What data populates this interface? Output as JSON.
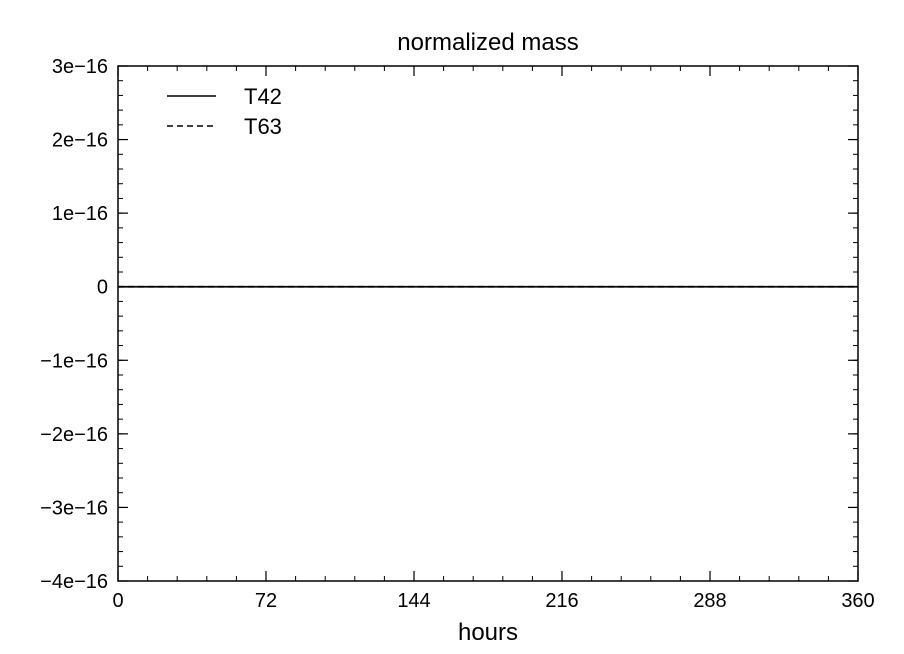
{
  "chart_data": {
    "type": "line",
    "title": "normalized mass",
    "xlabel": "hours",
    "ylabel": "",
    "xlim": [
      0,
      360
    ],
    "ylim": [
      -4e-16,
      3e-16
    ],
    "x_ticks": [
      0,
      72,
      144,
      216,
      288,
      360
    ],
    "x_tick_labels": [
      "0",
      "72",
      "144",
      "216",
      "288",
      "360"
    ],
    "y_ticks": [
      3e-16,
      2e-16,
      1e-16,
      0,
      -1e-16,
      -2e-16,
      -3e-16,
      -4e-16
    ],
    "y_tick_labels": [
      "3e−16",
      "2e−16",
      "1e−16",
      "0",
      "−1e−16",
      "−2e−16",
      "−3e−16",
      "−4e−16"
    ],
    "grid": false,
    "legend_position": "top-left",
    "series": [
      {
        "name": "T42",
        "style": "solid",
        "color": "#000000",
        "x": [
          0,
          360
        ],
        "y": [
          0,
          0
        ]
      },
      {
        "name": "T63",
        "style": "dashed",
        "color": "#000000",
        "x": [
          0,
          360
        ],
        "y": [
          0,
          0
        ]
      }
    ]
  }
}
